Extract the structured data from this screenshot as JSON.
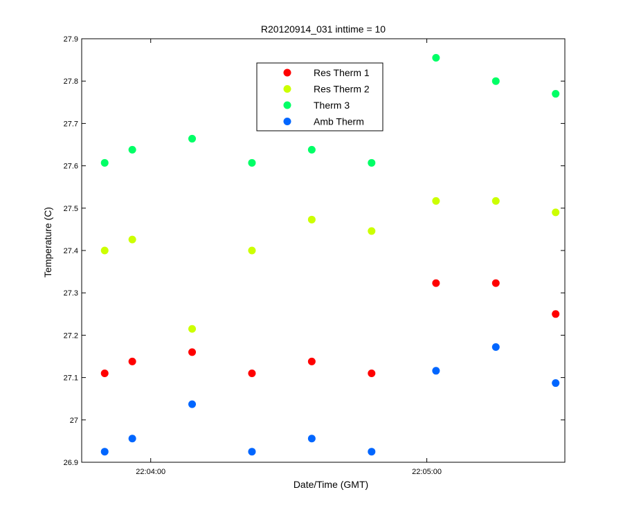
{
  "chart_data": {
    "type": "scatter",
    "title": "R20120914_031 inttime = 10",
    "xlabel": "Date/Time (GMT)",
    "ylabel": "Temperature (C)",
    "xlim": [
      "22:03:45",
      "22:05:30"
    ],
    "ylim": [
      26.9,
      27.9
    ],
    "x_ticks": [
      {
        "value": "22:04:00",
        "label": "22:04:00"
      },
      {
        "value": "22:05:00",
        "label": "22:05:00"
      }
    ],
    "y_ticks": [
      {
        "value": 26.9,
        "label": "26.9"
      },
      {
        "value": 27.0,
        "label": "27"
      },
      {
        "value": 27.1,
        "label": "27.1"
      },
      {
        "value": 27.2,
        "label": "27.2"
      },
      {
        "value": 27.3,
        "label": "27.3"
      },
      {
        "value": 27.4,
        "label": "27.4"
      },
      {
        "value": 27.5,
        "label": "27.5"
      },
      {
        "value": 27.6,
        "label": "27.6"
      },
      {
        "value": 27.7,
        "label": "27.7"
      },
      {
        "value": 27.8,
        "label": "27.8"
      },
      {
        "value": 27.9,
        "label": "27.9"
      }
    ],
    "x": [
      "22:03:50",
      "22:03:56",
      "22:04:09",
      "22:04:22",
      "22:04:35",
      "22:04:48",
      "22:05:02",
      "22:05:15",
      "22:05:28"
    ],
    "grid": false,
    "legend_position": "top-center",
    "series": [
      {
        "name": "Res Therm 1",
        "color": "#ff0000",
        "values": [
          27.11,
          27.138,
          27.16,
          27.11,
          27.138,
          27.11,
          27.323,
          27.323,
          27.25
        ]
      },
      {
        "name": "Res Therm 2",
        "color": "#ccff00",
        "values": [
          27.4,
          27.426,
          27.215,
          27.4,
          27.473,
          27.446,
          27.517,
          27.517,
          27.49
        ]
      },
      {
        "name": "Therm 3",
        "color": "#00ff66",
        "values": [
          27.607,
          27.638,
          27.664,
          27.607,
          27.638,
          27.607,
          27.855,
          27.8,
          27.77
        ]
      },
      {
        "name": "Amb Therm",
        "color": "#0066ff",
        "values": [
          26.925,
          26.956,
          27.037,
          26.925,
          26.956,
          26.925,
          27.116,
          27.172,
          27.087
        ]
      }
    ]
  }
}
